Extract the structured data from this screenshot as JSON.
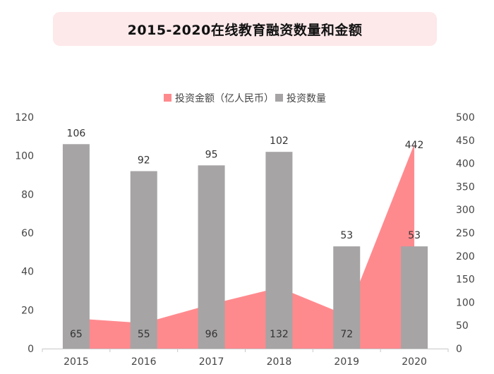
{
  "chart_data": {
    "type": "bar+area",
    "title": "2015-2020在线教育融资数量和金额",
    "categories": [
      "2015",
      "2016",
      "2017",
      "2018",
      "2019",
      "2020"
    ],
    "series": [
      {
        "name": "投资金额（亿人民币）",
        "type": "area",
        "axis": "right",
        "color": "#ff8a8e",
        "values": [
          65,
          55,
          96,
          132,
          72,
          442
        ]
      },
      {
        "name": "投资数量",
        "type": "bar",
        "axis": "left",
        "color": "#a6a4a5",
        "values": [
          106,
          92,
          95,
          102,
          53,
          53
        ]
      }
    ],
    "y_left": {
      "min": 0,
      "max": 120,
      "ticks": [
        "0",
        "20",
        "40",
        "60",
        "80",
        "100",
        "120"
      ]
    },
    "y_right": {
      "min": 0,
      "max": 500,
      "ticks": [
        "0",
        "50",
        "100",
        "150",
        "200",
        "250",
        "300",
        "350",
        "400",
        "450",
        "500"
      ]
    },
    "legend_position": "top-center",
    "grid": false
  }
}
